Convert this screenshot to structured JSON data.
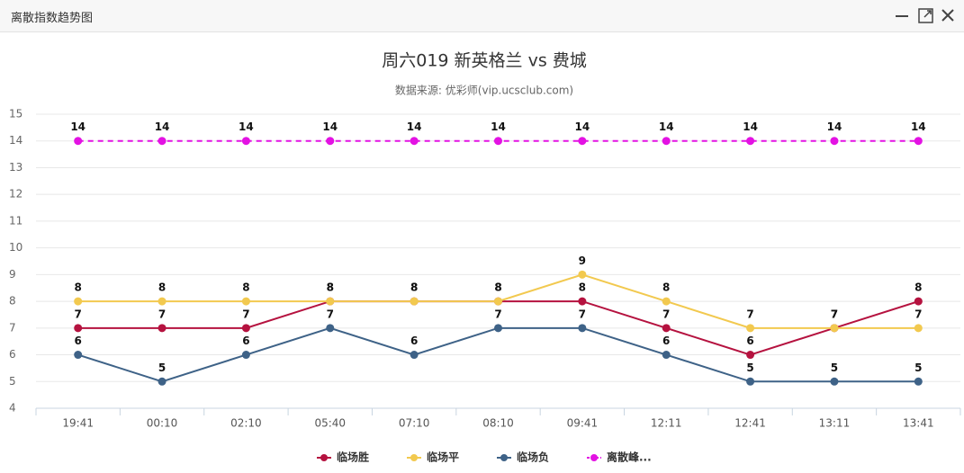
{
  "window_title": "离散指数趋势图",
  "chart_data": {
    "type": "line",
    "title": "周六019 新英格兰 vs 费城",
    "subtitle": "数据来源: 优彩师(vip.ucsclub.com)",
    "categories": [
      "19:41",
      "00:10",
      "02:10",
      "05:40",
      "07:10",
      "08:10",
      "09:41",
      "12:11",
      "12:41",
      "13:11",
      "13:41"
    ],
    "series": [
      {
        "name": "临场胜",
        "color": "#b5123f",
        "line_style": "solid",
        "values": [
          7,
          7,
          7,
          8,
          8,
          8,
          8,
          7,
          6,
          7,
          8
        ]
      },
      {
        "name": "临场平",
        "color": "#f2c94f",
        "line_style": "solid",
        "values": [
          8,
          8,
          8,
          8,
          8,
          8,
          9,
          8,
          7,
          7,
          7
        ]
      },
      {
        "name": "临场负",
        "color": "#3e6287",
        "line_style": "solid",
        "values": [
          6,
          5,
          6,
          7,
          6,
          7,
          7,
          6,
          5,
          5,
          5
        ]
      },
      {
        "name": "离散峰...",
        "color": "#e312e3",
        "line_style": "dashed",
        "values": [
          14,
          14,
          14,
          14,
          14,
          14,
          14,
          14,
          14,
          14,
          14
        ]
      }
    ],
    "ylim": [
      4,
      15
    ],
    "yticks": [
      4,
      5,
      6,
      7,
      8,
      9,
      10,
      11,
      12,
      13,
      14,
      15
    ],
    "grid": true,
    "legend": "bottom"
  }
}
